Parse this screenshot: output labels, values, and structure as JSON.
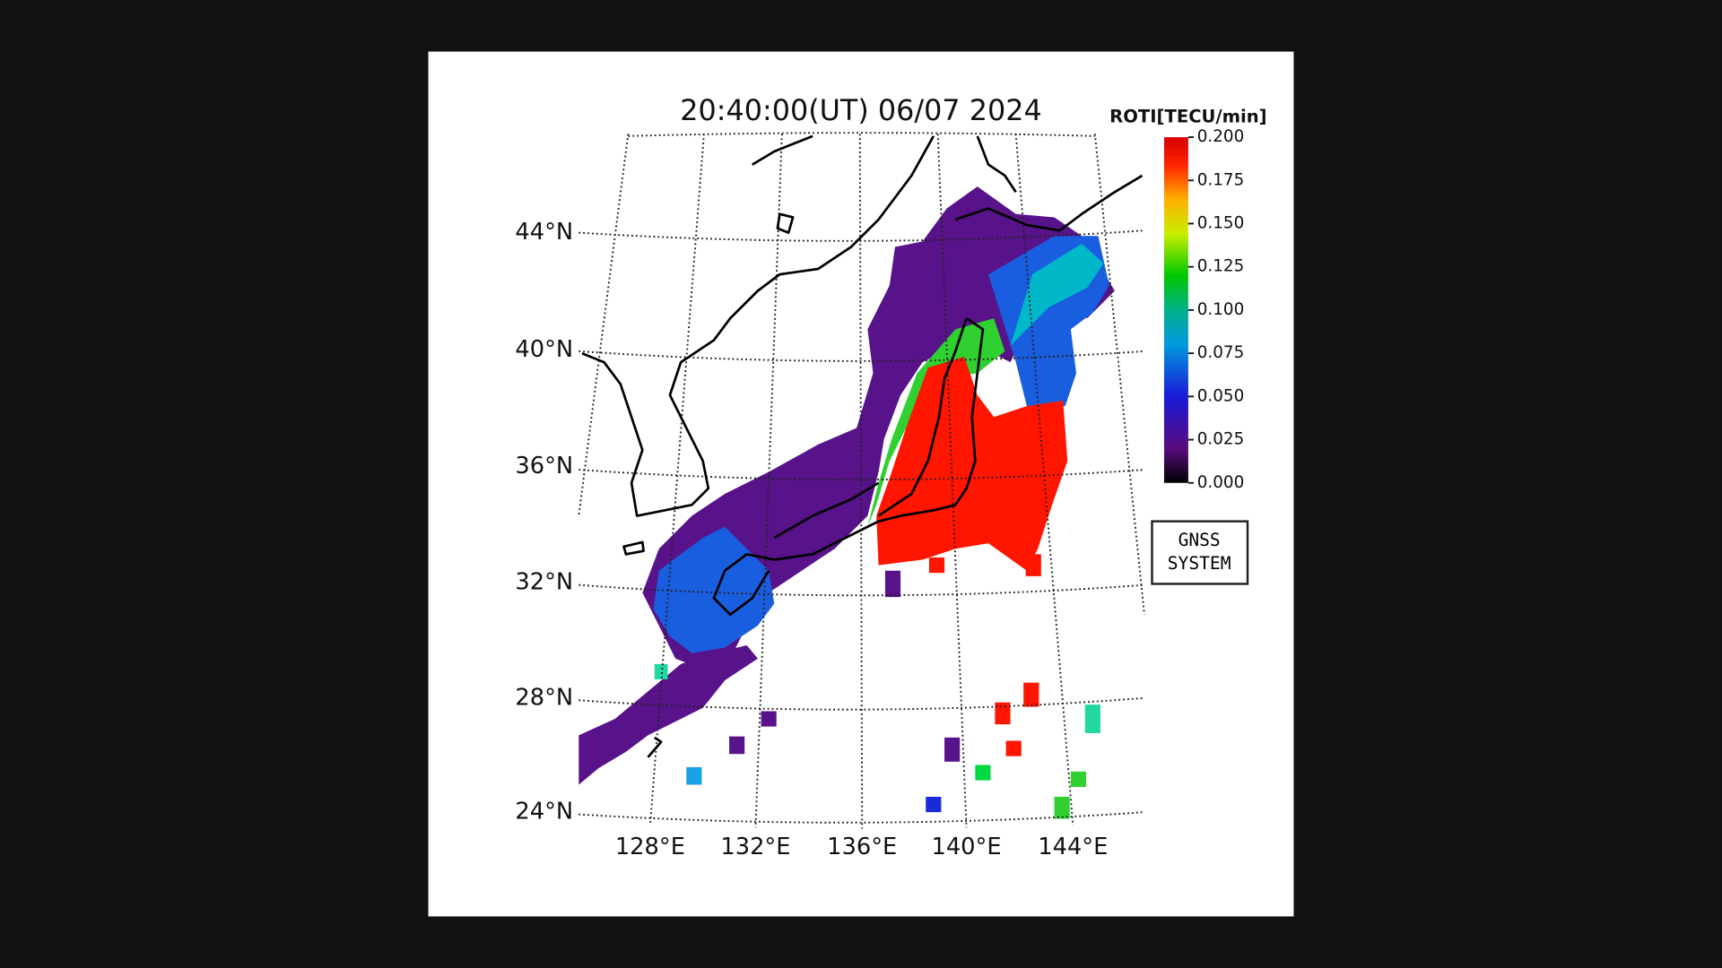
{
  "header": {
    "title": "20:40:00(UT) 06/07 2024"
  },
  "colorbar": {
    "label": "ROTI[TECU/min]",
    "lim": [
      0,
      0.2
    ],
    "ticks": [
      {
        "value": 0,
        "label": "0.000"
      },
      {
        "value": 0.025,
        "label": "0.025"
      },
      {
        "value": 0.05,
        "label": "0.050"
      },
      {
        "value": 0.075,
        "label": "0.075"
      },
      {
        "value": 0.1,
        "label": "0.100"
      },
      {
        "value": 0.125,
        "label": "0.125"
      },
      {
        "value": 0.15,
        "label": "0.150"
      },
      {
        "value": 0.175,
        "label": "0.175"
      },
      {
        "value": 0.2,
        "label": "0.200"
      }
    ]
  },
  "latitude_labels": [
    "44°N",
    "40°N",
    "36°N",
    "32°N",
    "28°N",
    "24°N"
  ],
  "longitude_labels": [
    "128°E",
    "132°E",
    "136°E",
    "140°E",
    "144°E"
  ],
  "legend_box": {
    "lines": [
      "GNSS",
      "SYSTEM"
    ]
  }
}
